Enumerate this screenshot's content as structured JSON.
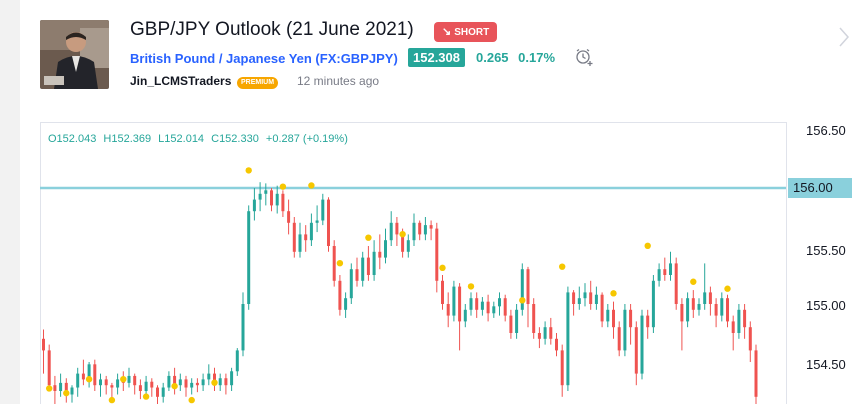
{
  "idea": {
    "title": "GBP/JPY Outlook (21 June 2021)",
    "direction": "SHORT",
    "symbol_name": "British Pound / Japanese Yen (FX:GBPJPY)",
    "price": "152.308",
    "change_abs": "0.265",
    "change_pct": "0.17%",
    "author": "Jin_LCMSTraders",
    "badge": "PREMIUM",
    "time_ago": "12 minutes ago"
  },
  "ohlc": {
    "open": "O152.043",
    "high": "H152.369",
    "low": "L152.014",
    "close": "C152.330",
    "change": "+0.287 (+0.19%)"
  },
  "axis": {
    "ticks": [
      "156.50",
      "156.00",
      "155.50",
      "155.00",
      "154.50"
    ],
    "level_label": "156.00"
  },
  "colors": {
    "up": "#26a69a",
    "down": "#ef5350",
    "level": "#8ad0dc",
    "marker": "#f6c700",
    "short": "#e8545a"
  },
  "chart_data": {
    "type": "candlestick",
    "horizontal_level": 156.0,
    "candles": [
      [
        154.7,
        154.6,
        154.78,
        154.4
      ],
      [
        154.6,
        154.3,
        154.65,
        154.25
      ],
      [
        154.3,
        154.25,
        154.38,
        154.1
      ],
      [
        154.25,
        154.32,
        154.4,
        154.2
      ],
      [
        154.32,
        154.22,
        154.36,
        154.15
      ],
      [
        154.22,
        154.28,
        154.3,
        154.15
      ],
      [
        154.28,
        154.4,
        154.45,
        154.2
      ],
      [
        154.4,
        154.35,
        154.52,
        154.3
      ],
      [
        154.35,
        154.48,
        154.5,
        154.28
      ],
      [
        154.48,
        154.3,
        154.52,
        154.25
      ],
      [
        154.3,
        154.35,
        154.4,
        154.2
      ],
      [
        154.35,
        154.3,
        154.38,
        154.22
      ],
      [
        154.3,
        154.28,
        154.32,
        154.18
      ],
      [
        154.28,
        154.35,
        154.4,
        154.22
      ],
      [
        154.35,
        154.32,
        154.42,
        154.25
      ],
      [
        154.32,
        154.38,
        154.45,
        154.28
      ],
      [
        154.38,
        154.3,
        154.4,
        154.22
      ],
      [
        154.3,
        154.25,
        154.35,
        154.18
      ],
      [
        154.25,
        154.33,
        154.38,
        154.2
      ],
      [
        154.33,
        154.28,
        154.36,
        154.2
      ],
      [
        154.28,
        154.2,
        154.3,
        154.12
      ],
      [
        154.2,
        154.28,
        154.32,
        154.15
      ],
      [
        154.28,
        154.38,
        154.42,
        154.25
      ],
      [
        154.38,
        154.3,
        154.45,
        154.22
      ],
      [
        154.3,
        154.35,
        154.4,
        154.25
      ],
      [
        154.35,
        154.28,
        154.38,
        154.2
      ],
      [
        154.28,
        154.32,
        154.36,
        154.22
      ],
      [
        154.32,
        154.3,
        154.36,
        154.24
      ],
      [
        154.3,
        154.35,
        154.4,
        154.25
      ],
      [
        154.35,
        154.4,
        154.48,
        154.3
      ],
      [
        154.4,
        154.3,
        154.45,
        154.25
      ],
      [
        154.3,
        154.36,
        154.4,
        154.25
      ],
      [
        154.36,
        154.3,
        154.4,
        154.22
      ],
      [
        154.3,
        154.42,
        154.45,
        154.25
      ],
      [
        154.42,
        154.6,
        154.62,
        154.38
      ],
      [
        154.6,
        155.0,
        155.1,
        154.55
      ],
      [
        155.0,
        155.8,
        155.85,
        154.95
      ],
      [
        155.8,
        155.9,
        156.0,
        155.72
      ],
      [
        155.9,
        155.95,
        156.05,
        155.8
      ],
      [
        155.95,
        155.98,
        156.04,
        155.85
      ],
      [
        155.98,
        155.85,
        156.0,
        155.8
      ],
      [
        155.85,
        155.95,
        156.02,
        155.78
      ],
      [
        155.95,
        155.8,
        155.98,
        155.75
      ],
      [
        155.8,
        155.7,
        155.9,
        155.6
      ],
      [
        155.7,
        155.45,
        155.75,
        155.4
      ],
      [
        155.45,
        155.6,
        155.7,
        155.4
      ],
      [
        155.6,
        155.55,
        155.68,
        155.45
      ],
      [
        155.55,
        155.7,
        155.78,
        155.5
      ],
      [
        155.7,
        155.72,
        155.85,
        155.62
      ],
      [
        155.72,
        155.9,
        155.95,
        155.68
      ],
      [
        155.9,
        155.5,
        155.92,
        155.45
      ],
      [
        155.5,
        155.2,
        155.55,
        155.15
      ],
      [
        155.2,
        154.95,
        155.25,
        154.9
      ],
      [
        154.95,
        155.05,
        155.1,
        154.88
      ],
      [
        155.05,
        155.3,
        155.35,
        155.0
      ],
      [
        155.3,
        155.2,
        155.4,
        155.15
      ],
      [
        155.2,
        155.4,
        155.45,
        155.15
      ],
      [
        155.4,
        155.25,
        155.5,
        155.2
      ],
      [
        155.25,
        155.45,
        155.55,
        155.2
      ],
      [
        155.45,
        155.4,
        155.6,
        155.3
      ],
      [
        155.4,
        155.55,
        155.65,
        155.35
      ],
      [
        155.55,
        155.7,
        155.8,
        155.5
      ],
      [
        155.7,
        155.6,
        155.75,
        155.5
      ],
      [
        155.6,
        155.45,
        155.65,
        155.4
      ],
      [
        155.45,
        155.55,
        155.6,
        155.4
      ],
      [
        155.55,
        155.7,
        155.78,
        155.5
      ],
      [
        155.7,
        155.6,
        155.72,
        155.55
      ],
      [
        155.6,
        155.68,
        155.75,
        155.55
      ],
      [
        155.68,
        155.65,
        155.72,
        155.55
      ],
      [
        155.65,
        155.2,
        155.7,
        155.1
      ],
      [
        155.2,
        155.0,
        155.25,
        154.95
      ],
      [
        155.0,
        154.9,
        155.1,
        154.8
      ],
      [
        154.9,
        155.15,
        155.2,
        154.85
      ],
      [
        155.15,
        154.85,
        155.18,
        154.6
      ],
      [
        154.85,
        154.95,
        155.0,
        154.8
      ],
      [
        154.95,
        155.05,
        155.1,
        154.9
      ],
      [
        155.05,
        154.95,
        155.1,
        154.88
      ],
      [
        154.95,
        155.02,
        155.06,
        154.9
      ],
      [
        155.02,
        154.92,
        155.08,
        154.85
      ],
      [
        154.92,
        154.98,
        155.02,
        154.88
      ],
      [
        154.98,
        155.05,
        155.1,
        154.9
      ],
      [
        155.05,
        154.9,
        155.08,
        154.85
      ],
      [
        154.9,
        154.75,
        154.95,
        154.7
      ],
      [
        154.75,
        154.95,
        155.0,
        154.7
      ],
      [
        154.95,
        155.3,
        155.35,
        154.9
      ],
      [
        155.3,
        155.0,
        155.32,
        154.8
      ],
      [
        155.0,
        154.75,
        155.05,
        154.7
      ],
      [
        154.75,
        154.7,
        154.8,
        154.62
      ],
      [
        154.7,
        154.8,
        154.85,
        154.65
      ],
      [
        154.8,
        154.7,
        154.88,
        154.65
      ],
      [
        154.7,
        154.6,
        154.75,
        154.55
      ],
      [
        154.6,
        154.3,
        154.65,
        154.2
      ],
      [
        154.3,
        155.1,
        155.15,
        154.25
      ],
      [
        155.1,
        155.0,
        155.12,
        154.9
      ],
      [
        155.0,
        155.05,
        155.15,
        154.95
      ],
      [
        155.05,
        155.1,
        155.18,
        154.98
      ],
      [
        155.1,
        155.0,
        155.2,
        154.95
      ],
      [
        155.0,
        155.08,
        155.15,
        154.95
      ],
      [
        155.08,
        154.85,
        155.1,
        154.8
      ],
      [
        154.85,
        154.95,
        155.0,
        154.8
      ],
      [
        154.95,
        154.8,
        155.02,
        154.7
      ],
      [
        154.8,
        154.6,
        154.85,
        154.55
      ],
      [
        154.6,
        154.95,
        155.0,
        154.55
      ],
      [
        154.95,
        154.8,
        155.0,
        154.65
      ],
      [
        154.8,
        154.4,
        154.85,
        154.3
      ],
      [
        154.4,
        154.9,
        154.95,
        154.35
      ],
      [
        154.9,
        154.8,
        154.95,
        154.7
      ],
      [
        154.8,
        155.2,
        155.25,
        154.75
      ],
      [
        155.2,
        155.3,
        155.35,
        155.15
      ],
      [
        155.3,
        155.25,
        155.4,
        155.2
      ],
      [
        155.25,
        155.35,
        155.45,
        155.2
      ],
      [
        155.35,
        155.0,
        155.4,
        154.95
      ],
      [
        155.0,
        154.85,
        155.05,
        154.6
      ],
      [
        154.85,
        155.05,
        155.1,
        154.8
      ],
      [
        155.05,
        154.95,
        155.12,
        154.88
      ],
      [
        154.95,
        155.0,
        155.05,
        154.9
      ],
      [
        155.0,
        155.1,
        155.35,
        154.95
      ],
      [
        155.1,
        155.0,
        155.15,
        154.9
      ],
      [
        155.0,
        154.9,
        155.05,
        154.8
      ],
      [
        154.9,
        155.05,
        155.1,
        154.85
      ],
      [
        155.05,
        154.85,
        155.08,
        154.8
      ],
      [
        154.85,
        154.75,
        154.9,
        154.6
      ],
      [
        154.75,
        154.95,
        155.0,
        154.7
      ],
      [
        154.95,
        154.8,
        155.0,
        154.7
      ],
      [
        154.8,
        154.6,
        154.85,
        154.5
      ],
      [
        154.6,
        154.2,
        154.65,
        154.1
      ]
    ],
    "markers": [
      [
        1,
        154.22
      ],
      [
        4,
        154.18
      ],
      [
        8,
        154.3
      ],
      [
        12,
        154.12
      ],
      [
        14,
        154.3
      ],
      [
        18,
        154.15
      ],
      [
        23,
        154.24
      ],
      [
        26,
        154.12
      ],
      [
        30,
        154.27
      ],
      [
        36,
        156.1
      ],
      [
        42,
        155.96
      ],
      [
        47,
        155.97
      ],
      [
        52,
        155.3
      ],
      [
        57,
        155.52
      ],
      [
        63,
        155.55
      ],
      [
        70,
        155.26
      ],
      [
        75,
        155.1
      ],
      [
        84,
        154.98
      ],
      [
        91,
        155.27
      ],
      [
        100,
        155.04
      ],
      [
        106,
        155.45
      ],
      [
        114,
        155.14
      ],
      [
        120,
        155.08
      ]
    ]
  }
}
